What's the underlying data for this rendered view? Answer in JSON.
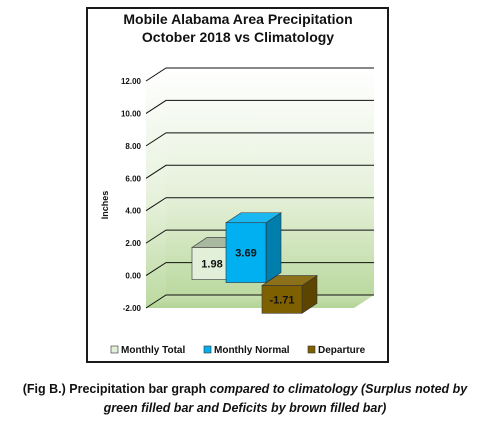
{
  "chart_data": {
    "type": "bar",
    "title": "Mobile Alabama Area Precipitation",
    "subtitle": "October 2018 vs Climatology",
    "ylabel": "Inches",
    "xlabel": "",
    "ylim": [
      -2,
      12
    ],
    "yticks": [
      "-2.00",
      "0.00",
      "2.00",
      "4.00",
      "6.00",
      "8.00",
      "10.00",
      "12.00"
    ],
    "grid": true,
    "legend_position": "bottom",
    "series": [
      {
        "name": "Monthly Total",
        "value": 1.98,
        "label": "1.98",
        "color": "#e2efd9"
      },
      {
        "name": "Monthly Normal",
        "value": 3.69,
        "label": "3.69",
        "color": "#00b0f0"
      },
      {
        "name": "Departure",
        "value": -1.71,
        "label": "-1.71",
        "color": "#7f6000"
      }
    ]
  },
  "caption": {
    "line1_plain": "(Fig B.) Precipitation bar graph ",
    "line1_italic": "compared to climatology (Surplus noted by",
    "line2_italic": "green filled bar and Deficits by brown filled bar)"
  }
}
